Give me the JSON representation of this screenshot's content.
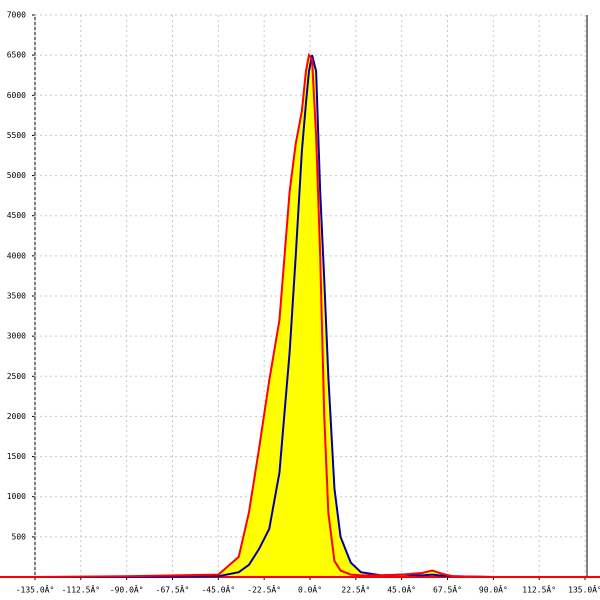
{
  "chart_data": {
    "type": "area-line",
    "x": [
      -135,
      -90,
      -45,
      -35,
      -30,
      -25,
      -20,
      -15,
      -10,
      -7,
      -4,
      -2,
      -0.5,
      1,
      3,
      5,
      7,
      9,
      12,
      15,
      20,
      25,
      35,
      45,
      55,
      60,
      65,
      70,
      90,
      135
    ],
    "series": [
      {
        "color": "#ff0000",
        "fill": "#ffff00",
        "values": [
          0,
          10,
          30,
          250,
          800,
          1600,
          2450,
          3200,
          4800,
          5400,
          5800,
          6300,
          6500,
          6450,
          5500,
          4000,
          2000,
          800,
          200,
          80,
          30,
          20,
          20,
          30,
          50,
          80,
          40,
          10,
          0,
          0
        ]
      },
      {
        "color": "#0000aa",
        "fill": "#ffff00",
        "values": [
          0,
          0,
          10,
          60,
          150,
          350,
          600,
          1300,
          2800,
          4000,
          5300,
          5900,
          6300,
          6500,
          6300,
          4800,
          3700,
          2500,
          1100,
          500,
          180,
          60,
          20,
          30,
          20,
          30,
          15,
          10,
          0,
          0
        ]
      }
    ],
    "xlim": [
      -135,
      135
    ],
    "ylim": [
      0,
      7000
    ],
    "xticks": [
      {
        "value": -135,
        "label": "-135.0Â°"
      },
      {
        "value": -112.5,
        "label": "-112.5Â°"
      },
      {
        "value": -90,
        "label": "-90.0Â°"
      },
      {
        "value": -67.5,
        "label": "-67.5Â°"
      },
      {
        "value": -45,
        "label": "-45.0Â°"
      },
      {
        "value": -22.5,
        "label": "-22.5Â°"
      },
      {
        "value": 0,
        "label": "0.0Â°"
      },
      {
        "value": 22.5,
        "label": "22.5Â°"
      },
      {
        "value": 45,
        "label": "45.0Â°"
      },
      {
        "value": 67.5,
        "label": "67.5Â°"
      },
      {
        "value": 90,
        "label": "90.0Â°"
      },
      {
        "value": 112.5,
        "label": "112.5Â°"
      },
      {
        "value": 135,
        "label": "135.0Â°"
      }
    ],
    "yticks": [
      500,
      1000,
      1500,
      2000,
      2500,
      3000,
      3500,
      4000,
      4500,
      5000,
      5500,
      6000,
      6500,
      7000
    ],
    "grid": true
  }
}
